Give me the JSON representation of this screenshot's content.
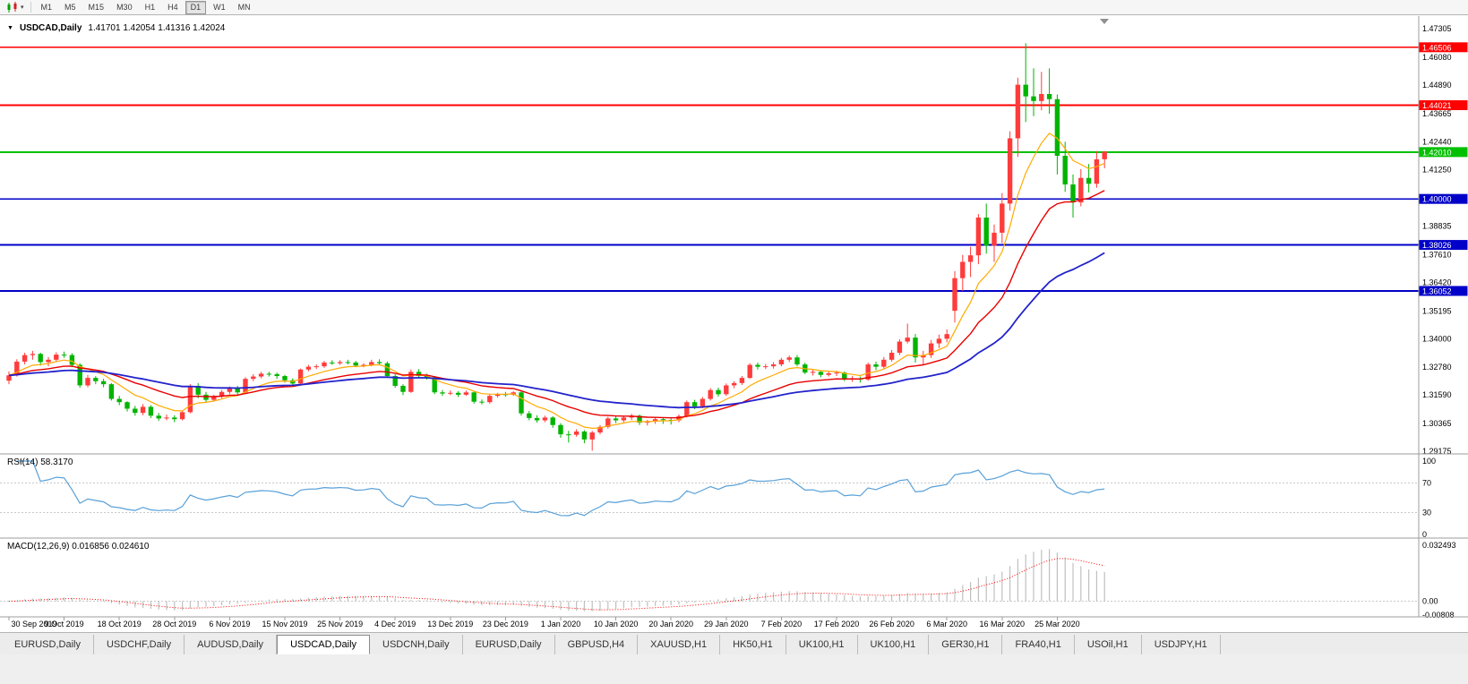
{
  "toolbar": {
    "timeframes": [
      {
        "label": "M1",
        "active": false
      },
      {
        "label": "M5",
        "active": false
      },
      {
        "label": "M15",
        "active": false
      },
      {
        "label": "M30",
        "active": false
      },
      {
        "label": "H1",
        "active": false
      },
      {
        "label": "H4",
        "active": false
      },
      {
        "label": "D1",
        "active": true
      },
      {
        "label": "W1",
        "active": false
      },
      {
        "label": "MN",
        "active": false
      }
    ]
  },
  "main_chart": {
    "title": {
      "symbol": "USDCAD,Daily",
      "ohlc_text": "1.41701 1.42054 1.41316 1.42024",
      "open": "1.41701",
      "high": "1.42054",
      "low": "1.41316",
      "close": "1.42024"
    },
    "price_axis_labels": [
      "1.47305",
      "1.46080",
      "1.44890",
      "1.43665",
      "1.42440",
      "1.41250",
      "1.38835",
      "1.37610",
      "1.36420",
      "1.35195",
      "1.34000",
      "1.32780",
      "1.31590",
      "1.30365",
      "1.29175"
    ],
    "hlines": [
      {
        "price": 1.46506,
        "label": "1.46506",
        "color": "#ff0000"
      },
      {
        "price": 1.44021,
        "label": "1.44021",
        "color": "#ff0000"
      },
      {
        "price": 1.4201,
        "label": "1.42010",
        "color": "#00c000"
      },
      {
        "price": 1.4,
        "label": "1.40000",
        "color": "#0000c8"
      },
      {
        "price": 1.38026,
        "label": "1.38026",
        "color": "#0000c8"
      },
      {
        "price": 1.36052,
        "label": "1.36052",
        "color": "#0000c8"
      }
    ]
  },
  "rsi_panel": {
    "label": "RSI(14) 58.3170",
    "period": 14,
    "current": "58.3170",
    "axis_labels": [
      "100",
      "70",
      "30",
      "0"
    ],
    "levels": [
      70,
      30
    ]
  },
  "macd_panel": {
    "label": "MACD(12,26,9) 0.016856 0.024610",
    "params": [
      12,
      26,
      9
    ],
    "current_main": "0.016856",
    "current_signal": "0.024610",
    "axis_labels": [
      "0.032493",
      "0.00",
      "-0.00808"
    ],
    "ymax": 0.032493,
    "ymin": -0.00808
  },
  "tabs": {
    "active_index": 3,
    "items": [
      {
        "label": "EURUSD,Daily"
      },
      {
        "label": "USDCHF,Daily"
      },
      {
        "label": "AUDUSD,Daily"
      },
      {
        "label": "USDCAD,Daily"
      },
      {
        "label": "USDCNH,Daily"
      },
      {
        "label": "EURUSD,Daily"
      },
      {
        "label": "GBPUSD,H4"
      },
      {
        "label": "XAUUSD,H1"
      },
      {
        "label": "HK50,H1"
      },
      {
        "label": "UK100,H1"
      },
      {
        "label": "UK100,H1"
      },
      {
        "label": "GER30,H1"
      },
      {
        "label": "FRA40,H1"
      },
      {
        "label": "USOil,H1"
      },
      {
        "label": "USDJPY,H1"
      }
    ]
  },
  "colors": {
    "bull": "#ff3b3b",
    "bear": "#00b400",
    "ma_fast": "#ffaa00",
    "ma_medium": "#e80000",
    "ma_slow": "#2222cc",
    "rsi_line": "#58a0d8",
    "macd_hist": "#c0c0c0",
    "macd_signal": "#ff0000",
    "level_dash": "#c8c8c8",
    "separator": "#9c9c9c"
  },
  "chart_data": {
    "type": "candlestick",
    "symbol": "USDCAD",
    "timeframe": "Daily",
    "ylim": [
      1.29175,
      1.47305
    ],
    "x_labels": [
      "30 Sep 2019",
      "9 Oct 2019",
      "18 Oct 2019",
      "28 Oct 2019",
      "6 Nov 2019",
      "15 Nov 2019",
      "25 Nov 2019",
      "4 Dec 2019",
      "13 Dec 2019",
      "23 Dec 2019",
      "1 Jan 2020",
      "10 Jan 2020",
      "20 Jan 2020",
      "29 Jan 2020",
      "7 Feb 2020",
      "17 Feb 2020",
      "26 Feb 2020",
      "6 Mar 2020",
      "16 Mar 2020",
      "25 Mar 2020"
    ],
    "x_label_indices": [
      0,
      7,
      14,
      21,
      28,
      35,
      42,
      49,
      56,
      63,
      70,
      77,
      84,
      91,
      98,
      105,
      112,
      119,
      126,
      133
    ],
    "moving_averages": [
      {
        "name": "fast",
        "period": 8,
        "color": "#ffaa00",
        "width": 1.2
      },
      {
        "name": "medium",
        "period": 20,
        "color": "#e80000",
        "width": 1.4
      },
      {
        "name": "slow",
        "period": 45,
        "color": "#2222cc",
        "width": 1.8
      }
    ],
    "indicators": [
      {
        "name": "RSI",
        "period": 14,
        "value": 58.317
      },
      {
        "name": "MACD",
        "fast": 12,
        "slow": 26,
        "signal": 9,
        "value_main": 0.016856,
        "value_signal": 0.02461
      }
    ],
    "ohlc": [
      [
        1.322,
        1.326,
        1.3205,
        1.3243
      ],
      [
        1.3243,
        1.3312,
        1.3238,
        1.3302
      ],
      [
        1.3302,
        1.334,
        1.329,
        1.333
      ],
      [
        1.333,
        1.3348,
        1.331,
        1.3335
      ],
      [
        1.3335,
        1.334,
        1.3285,
        1.33
      ],
      [
        1.33,
        1.3322,
        1.3282,
        1.331
      ],
      [
        1.331,
        1.3342,
        1.33,
        1.3332
      ],
      [
        1.3332,
        1.3345,
        1.3318,
        1.333
      ],
      [
        1.333,
        1.3338,
        1.3278,
        1.3288
      ],
      [
        1.3288,
        1.3295,
        1.319,
        1.32
      ],
      [
        1.32,
        1.3245,
        1.3192,
        1.3232
      ],
      [
        1.3232,
        1.324,
        1.3205,
        1.3218
      ],
      [
        1.3218,
        1.3228,
        1.3192,
        1.3205
      ],
      [
        1.3205,
        1.321,
        1.3135,
        1.3142
      ],
      [
        1.3142,
        1.3155,
        1.3115,
        1.3128
      ],
      [
        1.3128,
        1.3132,
        1.3088,
        1.31
      ],
      [
        1.31,
        1.3112,
        1.307,
        1.3082
      ],
      [
        1.3082,
        1.312,
        1.3072,
        1.3108
      ],
      [
        1.3108,
        1.3115,
        1.306,
        1.307
      ],
      [
        1.307,
        1.3082,
        1.3048,
        1.3058
      ],
      [
        1.3058,
        1.3075,
        1.305,
        1.3062
      ],
      [
        1.3062,
        1.3072,
        1.3042,
        1.3055
      ],
      [
        1.3055,
        1.3092,
        1.305,
        1.3085
      ],
      [
        1.3085,
        1.3205,
        1.308,
        1.3198
      ],
      [
        1.3198,
        1.321,
        1.3145,
        1.316
      ],
      [
        1.316,
        1.3172,
        1.3125,
        1.3138
      ],
      [
        1.3138,
        1.316,
        1.313,
        1.3152
      ],
      [
        1.3152,
        1.318,
        1.3145,
        1.3172
      ],
      [
        1.3172,
        1.3195,
        1.3162,
        1.3188
      ],
      [
        1.3188,
        1.3198,
        1.3158,
        1.317
      ],
      [
        1.317,
        1.3235,
        1.3165,
        1.3228
      ],
      [
        1.3228,
        1.3248,
        1.3218,
        1.3238
      ],
      [
        1.3238,
        1.3258,
        1.323,
        1.325
      ],
      [
        1.325,
        1.3258,
        1.3238,
        1.3248
      ],
      [
        1.3248,
        1.3255,
        1.3228,
        1.324
      ],
      [
        1.324,
        1.3245,
        1.3212,
        1.3222
      ],
      [
        1.3222,
        1.323,
        1.3198,
        1.3208
      ],
      [
        1.3208,
        1.3272,
        1.3202,
        1.3268
      ],
      [
        1.3268,
        1.3288,
        1.326,
        1.328
      ],
      [
        1.328,
        1.329,
        1.327,
        1.3282
      ],
      [
        1.3282,
        1.3305,
        1.3275,
        1.3298
      ],
      [
        1.3298,
        1.3308,
        1.3288,
        1.3295
      ],
      [
        1.3295,
        1.3308,
        1.3288,
        1.33
      ],
      [
        1.33,
        1.331,
        1.329,
        1.3298
      ],
      [
        1.3298,
        1.3305,
        1.3278,
        1.3285
      ],
      [
        1.3285,
        1.3295,
        1.3278,
        1.3288
      ],
      [
        1.3288,
        1.331,
        1.3282,
        1.33
      ],
      [
        1.33,
        1.3312,
        1.3288,
        1.3295
      ],
      [
        1.3295,
        1.3302,
        1.3232,
        1.324
      ],
      [
        1.324,
        1.3248,
        1.319,
        1.3198
      ],
      [
        1.3198,
        1.3205,
        1.3158,
        1.3172
      ],
      [
        1.3172,
        1.3268,
        1.3168,
        1.3258
      ],
      [
        1.3258,
        1.327,
        1.3232,
        1.324
      ],
      [
        1.324,
        1.325,
        1.3225,
        1.3235
      ],
      [
        1.3235,
        1.324,
        1.3162,
        1.317
      ],
      [
        1.317,
        1.318,
        1.3155,
        1.3165
      ],
      [
        1.3165,
        1.3178,
        1.3158,
        1.3168
      ],
      [
        1.3168,
        1.3175,
        1.315,
        1.316
      ],
      [
        1.316,
        1.3178,
        1.3155,
        1.317
      ],
      [
        1.317,
        1.3175,
        1.3122,
        1.313
      ],
      [
        1.313,
        1.314,
        1.3118,
        1.3128
      ],
      [
        1.3128,
        1.3162,
        1.3122,
        1.3155
      ],
      [
        1.3155,
        1.3168,
        1.3148,
        1.3162
      ],
      [
        1.3162,
        1.3172,
        1.3152,
        1.316
      ],
      [
        1.316,
        1.3175,
        1.3155,
        1.317
      ],
      [
        1.317,
        1.3175,
        1.307,
        1.308
      ],
      [
        1.308,
        1.309,
        1.305,
        1.306
      ],
      [
        1.306,
        1.3072,
        1.304,
        1.305
      ],
      [
        1.305,
        1.307,
        1.3042,
        1.3062
      ],
      [
        1.3062,
        1.3068,
        1.3018,
        1.303
      ],
      [
        1.303,
        1.3038,
        1.2975,
        1.299
      ],
      [
        1.299,
        1.3005,
        1.2955,
        1.2988
      ],
      [
        1.2988,
        1.3012,
        1.298,
        1.3002
      ],
      [
        1.3002,
        1.3008,
        1.2952,
        1.2968
      ],
      [
        1.2968,
        1.3005,
        1.292,
        1.2998
      ],
      [
        1.2998,
        1.303,
        1.299,
        1.3022
      ],
      [
        1.3022,
        1.3065,
        1.3015,
        1.3058
      ],
      [
        1.3058,
        1.3068,
        1.3038,
        1.305
      ],
      [
        1.305,
        1.307,
        1.3042,
        1.3062
      ],
      [
        1.3062,
        1.3078,
        1.3052,
        1.307
      ],
      [
        1.307,
        1.3075,
        1.303,
        1.304
      ],
      [
        1.304,
        1.3052,
        1.3028,
        1.3045
      ],
      [
        1.3045,
        1.3062,
        1.3035,
        1.3055
      ],
      [
        1.3055,
        1.306,
        1.3035,
        1.3052
      ],
      [
        1.3052,
        1.3058,
        1.3032,
        1.305
      ],
      [
        1.305,
        1.3075,
        1.3042,
        1.3068
      ],
      [
        1.3068,
        1.3135,
        1.3062,
        1.3128
      ],
      [
        1.3128,
        1.3138,
        1.3098,
        1.311
      ],
      [
        1.311,
        1.315,
        1.3102,
        1.3142
      ],
      [
        1.3142,
        1.3188,
        1.3135,
        1.318
      ],
      [
        1.318,
        1.319,
        1.3152,
        1.3162
      ],
      [
        1.3162,
        1.3208,
        1.3155,
        1.32
      ],
      [
        1.32,
        1.3218,
        1.3188,
        1.321
      ],
      [
        1.321,
        1.324,
        1.3202,
        1.3232
      ],
      [
        1.3232,
        1.3295,
        1.3228,
        1.3288
      ],
      [
        1.3288,
        1.3298,
        1.3268,
        1.328
      ],
      [
        1.328,
        1.3292,
        1.327,
        1.3282
      ],
      [
        1.3282,
        1.33,
        1.3272,
        1.329
      ],
      [
        1.329,
        1.3318,
        1.3282,
        1.331
      ],
      [
        1.331,
        1.3328,
        1.33,
        1.332
      ],
      [
        1.332,
        1.333,
        1.3282,
        1.329
      ],
      [
        1.329,
        1.3298,
        1.3248,
        1.3255
      ],
      [
        1.3255,
        1.3268,
        1.3242,
        1.3258
      ],
      [
        1.3258,
        1.3265,
        1.3235,
        1.3245
      ],
      [
        1.3245,
        1.3262,
        1.3238,
        1.3252
      ],
      [
        1.3252,
        1.3262,
        1.324,
        1.3255
      ],
      [
        1.3255,
        1.326,
        1.3218,
        1.3225
      ],
      [
        1.3225,
        1.324,
        1.3215,
        1.323
      ],
      [
        1.323,
        1.3238,
        1.3212,
        1.3225
      ],
      [
        1.3225,
        1.3298,
        1.322,
        1.329
      ],
      [
        1.329,
        1.3302,
        1.3265,
        1.328
      ],
      [
        1.328,
        1.3322,
        1.3272,
        1.331
      ],
      [
        1.331,
        1.3352,
        1.3302,
        1.334
      ],
      [
        1.334,
        1.3398,
        1.333,
        1.3388
      ],
      [
        1.3388,
        1.3465,
        1.338,
        1.3405
      ],
      [
        1.3405,
        1.342,
        1.3298,
        1.332
      ],
      [
        1.332,
        1.3348,
        1.3288,
        1.333
      ],
      [
        1.333,
        1.3395,
        1.3318,
        1.338
      ],
      [
        1.338,
        1.3418,
        1.336,
        1.34
      ],
      [
        1.34,
        1.344,
        1.3385,
        1.342
      ],
      [
        1.352,
        1.369,
        1.347,
        1.366
      ],
      [
        1.366,
        1.376,
        1.3605,
        1.373
      ],
      [
        1.373,
        1.3795,
        1.3665,
        1.3758
      ],
      [
        1.3758,
        1.3935,
        1.372,
        1.392
      ],
      [
        1.392,
        1.398,
        1.3765,
        1.38
      ],
      [
        1.38,
        1.389,
        1.373,
        1.3855
      ],
      [
        1.3855,
        1.4025,
        1.381,
        1.398
      ],
      [
        1.398,
        1.429,
        1.395,
        1.426
      ],
      [
        1.426,
        1.452,
        1.418,
        1.449
      ],
      [
        1.449,
        1.4668,
        1.433,
        1.444
      ],
      [
        1.444,
        1.456,
        1.4355,
        1.442
      ],
      [
        1.442,
        1.4545,
        1.438,
        1.445
      ],
      [
        1.445,
        1.456,
        1.4365,
        1.4428
      ],
      [
        1.4428,
        1.4448,
        1.4105,
        1.4185
      ],
      [
        1.4185,
        1.4245,
        1.403,
        1.4062
      ],
      [
        1.4062,
        1.4105,
        1.392,
        1.3985
      ],
      [
        1.3985,
        1.4128,
        1.3968,
        1.409
      ],
      [
        1.409,
        1.415,
        1.4028,
        1.4065
      ],
      [
        1.4065,
        1.4205,
        1.4048,
        1.417
      ],
      [
        1.41701,
        1.42054,
        1.41316,
        1.42024
      ]
    ]
  }
}
